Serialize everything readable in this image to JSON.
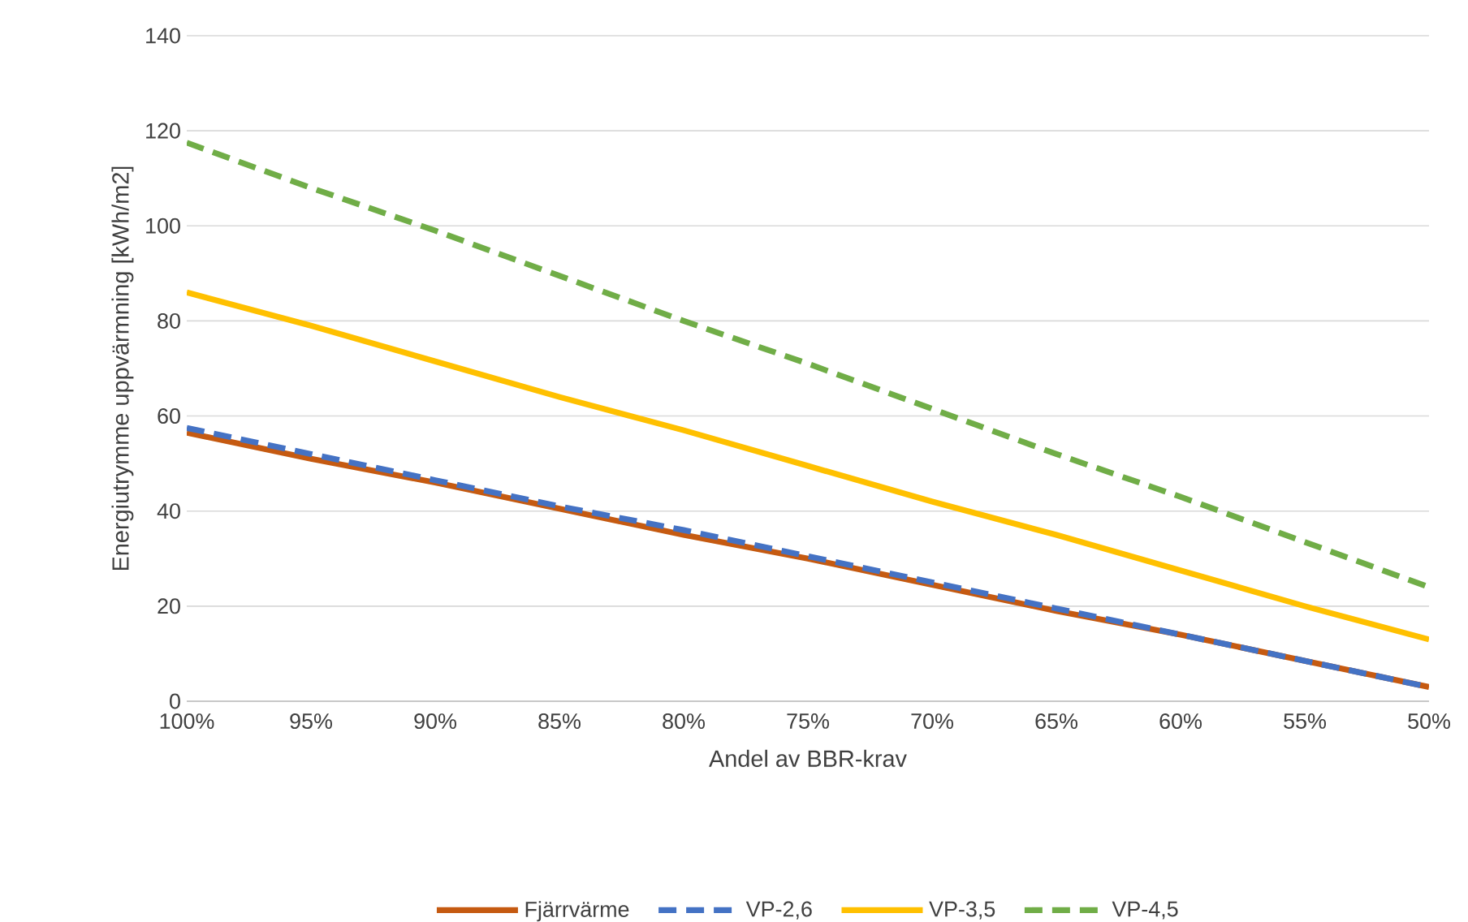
{
  "chart_data": {
    "type": "line",
    "xlabel": "Andel av BBR-krav",
    "ylabel": "Energiutrymme uppvärmning [kWh/m2]",
    "categories": [
      "100%",
      "95%",
      "90%",
      "85%",
      "80%",
      "75%",
      "70%",
      "65%",
      "60%",
      "55%",
      "50%"
    ],
    "series": [
      {
        "name": "Fjärrvärme",
        "color": "#c55a11",
        "line_style": "solid",
        "values": [
          56.5,
          51,
          46,
          40.5,
          35,
          30,
          24.5,
          19,
          14,
          8.5,
          3
        ]
      },
      {
        "name": "VP-2,6",
        "color": "#4472c4",
        "line_style": "dashed",
        "values": [
          57.5,
          52,
          46.5,
          41,
          36,
          30.5,
          25,
          19.5,
          14,
          8.5,
          3
        ]
      },
      {
        "name": "VP-3,5",
        "color": "#ffc000",
        "line_style": "solid",
        "values": [
          86,
          79,
          71.5,
          64,
          57,
          49.5,
          42,
          35,
          27.5,
          20,
          13
        ]
      },
      {
        "name": "VP-4,5",
        "color": "#70ad47",
        "line_style": "dashed",
        "values": [
          117.5,
          108,
          99,
          89.5,
          80,
          71,
          61.5,
          52,
          43,
          33.5,
          24
        ]
      }
    ],
    "ylim": [
      0,
      140
    ],
    "yticks": [
      0,
      20,
      40,
      60,
      80,
      100,
      120,
      140
    ],
    "grid": "y",
    "legend": "bottom"
  }
}
